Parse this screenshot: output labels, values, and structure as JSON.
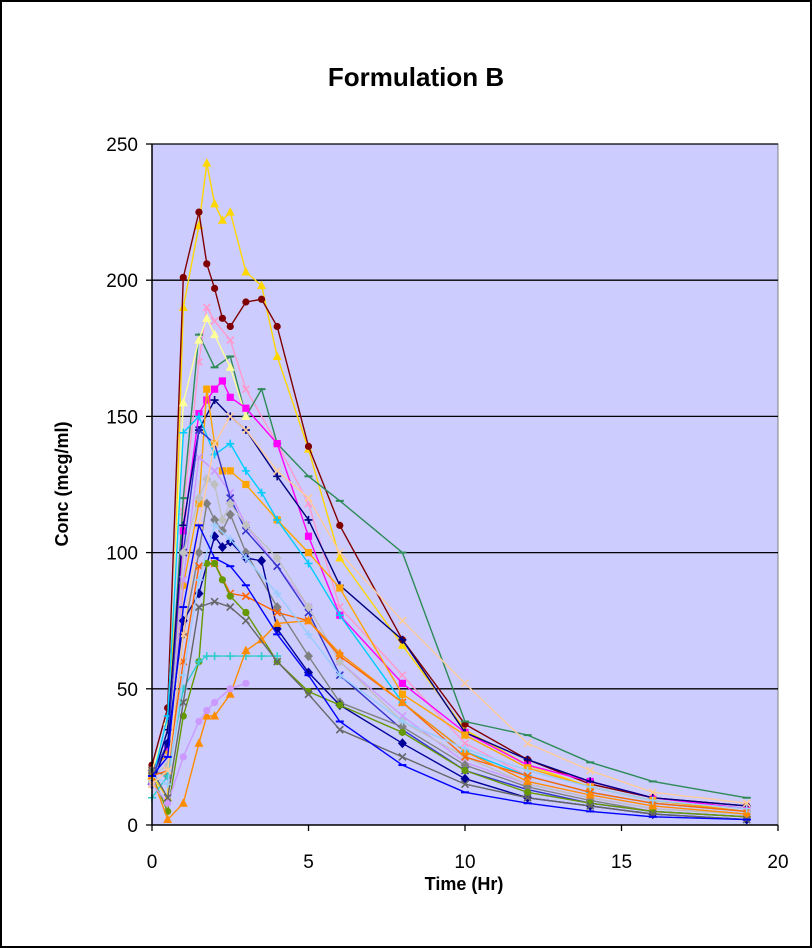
{
  "colors": {
    "plot_bg": "#ccccff",
    "grid": "#000000",
    "border": "#000000"
  },
  "chart_data": {
    "type": "line",
    "title": "Formulation B",
    "xlabel": "Time (Hr)",
    "ylabel": "Conc (mcg/ml)",
    "xlim": [
      0,
      20
    ],
    "ylim": [
      0,
      250
    ],
    "xticks": [
      "0",
      "5",
      "10",
      "15",
      "20"
    ],
    "yticks": [
      "0",
      "50",
      "100",
      "150",
      "200",
      "250"
    ],
    "grid": "horizontal major gridlines",
    "legend": "none",
    "series": [
      {
        "color": "#ffd700",
        "marker": "triangle",
        "x": [
          0,
          0.5,
          1,
          1.5,
          1.75,
          2,
          2.25,
          2.5,
          3,
          3.5,
          4,
          5,
          6,
          8,
          10,
          12,
          14,
          16,
          19
        ],
        "y": [
          18,
          10,
          190,
          220,
          243,
          228,
          222,
          225,
          203,
          198,
          172,
          138,
          98,
          66,
          35,
          22,
          14,
          9,
          6
        ]
      },
      {
        "color": "#800000",
        "marker": "circle",
        "x": [
          0,
          0.5,
          1,
          1.5,
          1.75,
          2,
          2.25,
          2.5,
          3,
          3.5,
          4,
          5,
          6,
          8,
          10,
          12,
          14,
          16,
          19
        ],
        "y": [
          22,
          43,
          201,
          225,
          206,
          197,
          186,
          183,
          192,
          193,
          183,
          139,
          110,
          68,
          37,
          24,
          15,
          10,
          7
        ]
      },
      {
        "color": "#ff99cc",
        "marker": "x",
        "x": [
          0,
          0.5,
          1,
          1.5,
          1.75,
          2,
          2.5,
          3,
          4,
          5,
          6,
          8,
          10,
          12,
          14,
          16,
          19
        ],
        "y": [
          15,
          20,
          115,
          170,
          190,
          185,
          178,
          160,
          140,
          118,
          80,
          55,
          30,
          18,
          12,
          8,
          5
        ]
      },
      {
        "color": "#2e8b57",
        "marker": "dash",
        "x": [
          0,
          0.5,
          1,
          1.5,
          2,
          2.5,
          3,
          3.5,
          4,
          5,
          6,
          8,
          10,
          12,
          14,
          16,
          19
        ],
        "y": [
          18,
          30,
          120,
          180,
          168,
          172,
          150,
          160,
          140,
          128,
          119,
          100,
          38,
          33,
          23,
          16,
          10
        ]
      },
      {
        "color": "#ffff99",
        "marker": "triangle",
        "x": [
          0,
          0.5,
          1,
          1.5,
          1.75,
          2,
          2.5,
          3
        ],
        "y": [
          20,
          38,
          155,
          178,
          186,
          180,
          168,
          150
        ]
      },
      {
        "color": "#ff00ff",
        "marker": "square",
        "x": [
          0,
          0.5,
          1,
          1.5,
          1.75,
          2,
          2.25,
          2.5,
          3,
          4,
          5,
          6,
          8,
          10,
          12,
          14,
          16,
          19
        ],
        "y": [
          20,
          28,
          108,
          151,
          156,
          160,
          163,
          157,
          153,
          140,
          106,
          77,
          52,
          34,
          22,
          16,
          10,
          6
        ]
      },
      {
        "color": "#000080",
        "marker": "plus",
        "x": [
          0,
          0.5,
          1,
          1.5,
          2,
          2.5,
          3,
          4,
          5,
          6,
          8,
          10,
          12,
          14,
          16,
          19
        ],
        "y": [
          16,
          35,
          110,
          145,
          156,
          150,
          145,
          128,
          112,
          88,
          68,
          34,
          24,
          16,
          10,
          7
        ]
      },
      {
        "color": "#ffa500",
        "marker": "square",
        "x": [
          0,
          0.5,
          1,
          1.5,
          1.75,
          2,
          2.25,
          2.5,
          3,
          4,
          5,
          6,
          8,
          10,
          12,
          14,
          16,
          19
        ],
        "y": [
          20,
          26,
          88,
          118,
          160,
          140,
          130,
          130,
          125,
          112,
          100,
          87,
          48,
          33,
          21,
          14,
          9,
          5
        ]
      },
      {
        "color": "#00ccff",
        "marker": "plus",
        "x": [
          0,
          0.5,
          1,
          1.5,
          2,
          2.5,
          3,
          3.5,
          4,
          5,
          6,
          8,
          10,
          12,
          14,
          16,
          19
        ],
        "y": [
          16,
          40,
          144,
          150,
          136,
          140,
          130,
          122,
          112,
          96,
          77,
          45,
          27,
          18,
          12,
          8,
          5
        ]
      },
      {
        "color": "#cc99ff",
        "marker": "x",
        "x": [
          0,
          0.5,
          1,
          1.5,
          2,
          2.5,
          3,
          4,
          5,
          6,
          8,
          10,
          12,
          14,
          16,
          19
        ],
        "y": [
          18,
          25,
          90,
          135,
          130,
          122,
          110,
          95,
          80,
          60,
          40,
          23,
          15,
          10,
          6,
          4
        ]
      },
      {
        "color": "#3333cc",
        "marker": "x",
        "x": [
          0,
          0.5,
          1,
          1.5,
          2,
          2.5,
          3,
          4,
          5,
          6,
          8,
          10,
          12,
          14,
          16,
          19
        ],
        "y": [
          18,
          30,
          100,
          145,
          140,
          120,
          108,
          95,
          78,
          55,
          35,
          20,
          13,
          8,
          5,
          3
        ]
      },
      {
        "color": "#c0c0c0",
        "marker": "diamond",
        "x": [
          0,
          0.5,
          1,
          1.5,
          1.75,
          2,
          2.25,
          2.5,
          3,
          4,
          5,
          6,
          8,
          10,
          12,
          14,
          16,
          19
        ],
        "y": [
          18,
          22,
          100,
          120,
          127,
          125,
          112,
          118,
          110,
          98,
          80,
          60,
          38,
          25,
          15,
          10,
          6,
          4
        ]
      },
      {
        "color": "#808080",
        "marker": "diamond",
        "x": [
          0,
          0.5,
          1,
          1.5,
          1.75,
          2,
          2.25,
          2.5,
          3,
          4,
          5,
          6,
          8,
          10,
          12,
          14,
          16,
          19
        ],
        "y": [
          20,
          18,
          70,
          100,
          118,
          112,
          108,
          114,
          100,
          80,
          62,
          45,
          36,
          22,
          14,
          9,
          5,
          3
        ]
      },
      {
        "color": "#000099",
        "marker": "diamond",
        "x": [
          0,
          0.5,
          1,
          1.5,
          2,
          2.25,
          2.5,
          3,
          3.5,
          4,
          5,
          6,
          8,
          10,
          12,
          14,
          16,
          19
        ],
        "y": [
          15,
          30,
          75,
          85,
          106,
          102,
          104,
          98,
          97,
          72,
          56,
          44,
          30,
          17,
          10,
          7,
          4,
          2
        ]
      },
      {
        "color": "#ff6600",
        "marker": "x",
        "x": [
          0,
          0.5,
          1,
          1.5,
          2,
          2.5,
          3,
          4,
          5,
          6,
          8,
          10,
          12,
          14,
          16,
          19
        ],
        "y": [
          18,
          20,
          60,
          95,
          96,
          85,
          84,
          78,
          75,
          62,
          45,
          25,
          18,
          12,
          8,
          5
        ]
      },
      {
        "color": "#669900",
        "marker": "circle",
        "x": [
          0,
          0.5,
          1,
          1.5,
          1.75,
          2,
          2.25,
          2.5,
          3,
          4,
          5,
          6,
          8,
          10,
          12,
          14,
          16,
          19
        ],
        "y": [
          18,
          5,
          40,
          60,
          96,
          96,
          90,
          84,
          78,
          60,
          49,
          44,
          34,
          20,
          12,
          8,
          5,
          3
        ]
      },
      {
        "color": "#33cccc",
        "marker": "plus",
        "x": [
          0,
          0.5,
          1,
          1.5,
          1.75,
          2,
          2.5,
          3,
          3.5,
          4
        ],
        "y": [
          10,
          18,
          50,
          60,
          62,
          62,
          62,
          62,
          62,
          62
        ]
      },
      {
        "color": "#ff8c00",
        "marker": "triangle",
        "x": [
          0,
          0.5,
          1,
          1.5,
          1.75,
          2,
          2.5,
          3,
          3.5,
          4,
          5,
          6,
          8,
          10,
          12,
          14,
          16,
          19
        ],
        "y": [
          18,
          2,
          8,
          30,
          40,
          40,
          48,
          64,
          68,
          74,
          75,
          63,
          45,
          27,
          16,
          11,
          7,
          4
        ]
      },
      {
        "color": "#cc99ff",
        "marker": "circle",
        "x": [
          0,
          0.5,
          1,
          1.5,
          1.75,
          2,
          2.5,
          3
        ],
        "y": [
          15,
          8,
          25,
          38,
          42,
          45,
          50,
          52
        ]
      },
      {
        "color": "#666666",
        "marker": "x",
        "x": [
          0,
          0.5,
          1,
          1.5,
          2,
          2.5,
          3,
          4,
          5,
          6,
          8,
          10,
          12,
          14,
          16,
          19
        ],
        "y": [
          20,
          10,
          45,
          80,
          82,
          80,
          75,
          60,
          48,
          35,
          25,
          15,
          10,
          7,
          4,
          2
        ]
      },
      {
        "color": "#99ccff",
        "marker": "plus",
        "x": [
          0,
          0.5,
          1,
          1.5,
          2,
          2.5,
          3,
          4,
          5,
          6,
          8,
          10,
          12,
          14,
          16,
          19
        ],
        "y": [
          18,
          15,
          55,
          90,
          110,
          105,
          98,
          85,
          70,
          55,
          38,
          28,
          20,
          14,
          9,
          6
        ]
      },
      {
        "color": "#ffcc99",
        "marker": "x",
        "x": [
          0,
          0.5,
          1,
          1.5,
          2,
          2.5,
          3,
          4,
          5,
          6,
          8,
          10,
          12,
          14,
          16,
          19
        ],
        "y": [
          15,
          20,
          70,
          110,
          140,
          150,
          145,
          130,
          120,
          100,
          75,
          52,
          30,
          20,
          12,
          8
        ]
      },
      {
        "color": "#0000ff",
        "marker": "dash",
        "x": [
          0,
          0.5,
          1,
          1.5,
          2,
          2.5,
          3,
          4,
          5,
          6,
          8,
          10,
          12,
          14,
          16,
          19
        ],
        "y": [
          18,
          25,
          80,
          110,
          98,
          95,
          88,
          70,
          55,
          38,
          22,
          12,
          8,
          5,
          3,
          2
        ]
      }
    ]
  }
}
